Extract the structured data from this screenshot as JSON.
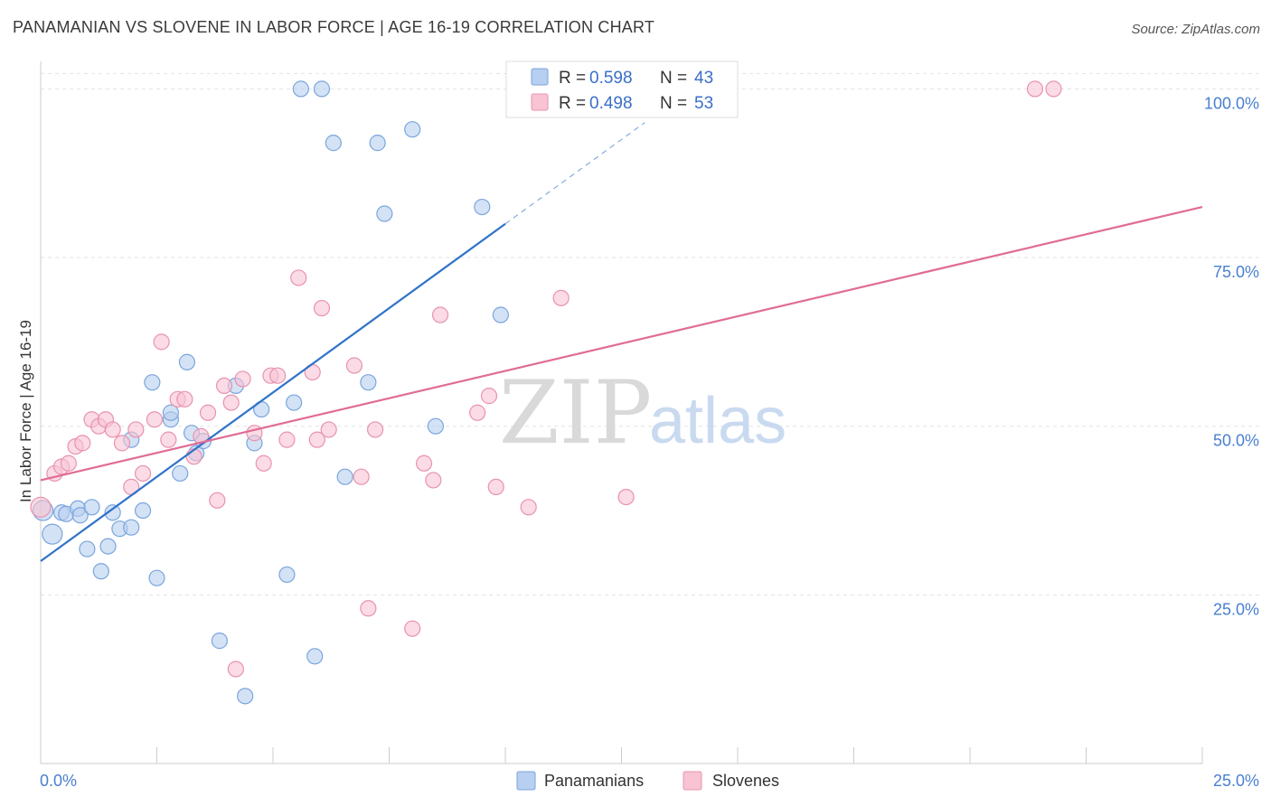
{
  "title": "PANAMANIAN VS SLOVENE IN LABOR FORCE | AGE 16-19 CORRELATION CHART",
  "source": "Source: ZipAtlas.com",
  "watermark": {
    "zip": "ZIP",
    "atlas": "atlas"
  },
  "colors": {
    "blue_fill": "#b7cff0",
    "blue_stroke": "#7aa6dc",
    "blue_line": "#2f73c9",
    "pink_fill": "#f8c3d3",
    "pink_stroke": "#e893ae",
    "pink_line": "#e06c95",
    "grid": "#e3e3e3",
    "axis": "#cccccc"
  },
  "legend": {
    "r_label": "R =",
    "n_label": "N =",
    "entries": [
      {
        "r": "0.598",
        "n": "43"
      },
      {
        "r": "0.498",
        "n": "53"
      }
    ]
  },
  "chart_data": {
    "type": "scatter",
    "title": "PANAMANIAN VS SLOVENE IN LABOR FORCE | AGE 16-19 CORRELATION CHART",
    "xlabel": "",
    "ylabel": "In Labor Force | Age 16-19",
    "xlim": [
      0,
      25
    ],
    "ylim": [
      0,
      103
    ],
    "x_tick_labels": [
      "0.0%",
      "25.0%"
    ],
    "y_ticks": [
      25,
      50,
      75,
      100
    ],
    "y_tick_labels": [
      "25.0%",
      "50.0%",
      "75.0%",
      "100.0%"
    ],
    "grid": true,
    "legend_position": "top-center",
    "series": [
      {
        "name": "Panamanians",
        "r": 0.598,
        "n": 43,
        "trend": {
          "x0": 0,
          "y0": 30.0,
          "x1": 10,
          "y1": 80.0,
          "dashed_to_x": 13.0
        },
        "points": [
          [
            0.05,
            37.5
          ],
          [
            0.25,
            34.0
          ],
          [
            0.45,
            37.2
          ],
          [
            0.55,
            37.0
          ],
          [
            0.8,
            37.8
          ],
          [
            0.85,
            36.8
          ],
          [
            1.0,
            31.8
          ],
          [
            1.1,
            38.0
          ],
          [
            1.3,
            28.5
          ],
          [
            1.45,
            32.2
          ],
          [
            1.55,
            37.2
          ],
          [
            1.7,
            34.8
          ],
          [
            1.95,
            35.0
          ],
          [
            2.2,
            37.5
          ],
          [
            1.95,
            48.0
          ],
          [
            2.4,
            56.5
          ],
          [
            2.5,
            27.5
          ],
          [
            2.8,
            51.0
          ],
          [
            2.8,
            52.0
          ],
          [
            3.0,
            43.0
          ],
          [
            3.15,
            59.5
          ],
          [
            3.25,
            49.0
          ],
          [
            3.35,
            46.0
          ],
          [
            3.5,
            47.8
          ],
          [
            3.85,
            18.2
          ],
          [
            4.2,
            56.0
          ],
          [
            4.4,
            10.0
          ],
          [
            4.6,
            47.5
          ],
          [
            4.75,
            52.5
          ],
          [
            5.3,
            28.0
          ],
          [
            5.45,
            53.5
          ],
          [
            5.6,
            100.0
          ],
          [
            5.9,
            15.9
          ],
          [
            6.05,
            100.0
          ],
          [
            6.3,
            92.0
          ],
          [
            6.55,
            42.5
          ],
          [
            7.05,
            56.5
          ],
          [
            7.25,
            92.0
          ],
          [
            7.4,
            81.5
          ],
          [
            8.0,
            94.0
          ],
          [
            8.5,
            50.0
          ],
          [
            9.5,
            82.5
          ],
          [
            9.9,
            66.5
          ]
        ]
      },
      {
        "name": "Slovenes",
        "r": 0.498,
        "n": 53,
        "trend": {
          "x0": 0,
          "y0": 42.0,
          "x1": 25,
          "y1": 82.5
        },
        "points": [
          [
            0.0,
            38.0
          ],
          [
            0.3,
            43.0
          ],
          [
            0.45,
            44.0
          ],
          [
            0.6,
            44.5
          ],
          [
            0.75,
            47.0
          ],
          [
            0.9,
            47.5
          ],
          [
            1.1,
            51.0
          ],
          [
            1.25,
            50.0
          ],
          [
            1.4,
            51.0
          ],
          [
            1.55,
            49.5
          ],
          [
            1.75,
            47.5
          ],
          [
            1.95,
            41.0
          ],
          [
            2.05,
            49.5
          ],
          [
            2.2,
            43.0
          ],
          [
            2.45,
            51.0
          ],
          [
            2.6,
            62.5
          ],
          [
            2.75,
            48.0
          ],
          [
            2.95,
            54.0
          ],
          [
            3.1,
            54.0
          ],
          [
            3.3,
            45.5
          ],
          [
            3.45,
            48.5
          ],
          [
            3.6,
            52.0
          ],
          [
            3.8,
            39.0
          ],
          [
            3.95,
            56.0
          ],
          [
            4.1,
            53.5
          ],
          [
            4.2,
            14.0
          ],
          [
            4.35,
            57.0
          ],
          [
            4.6,
            49.0
          ],
          [
            4.8,
            44.5
          ],
          [
            4.95,
            57.5
          ],
          [
            5.1,
            57.5
          ],
          [
            5.3,
            48.0
          ],
          [
            5.55,
            72.0
          ],
          [
            5.85,
            58.0
          ],
          [
            5.95,
            48.0
          ],
          [
            6.05,
            67.5
          ],
          [
            6.2,
            49.5
          ],
          [
            6.75,
            59.0
          ],
          [
            6.9,
            42.5
          ],
          [
            7.05,
            23.0
          ],
          [
            7.2,
            49.5
          ],
          [
            8.0,
            20.0
          ],
          [
            8.25,
            44.5
          ],
          [
            8.45,
            42.0
          ],
          [
            8.6,
            66.5
          ],
          [
            9.4,
            52.0
          ],
          [
            9.65,
            54.5
          ],
          [
            9.8,
            41.0
          ],
          [
            10.5,
            38.0
          ],
          [
            11.2,
            69.0
          ],
          [
            12.6,
            39.5
          ],
          [
            21.4,
            100.0
          ],
          [
            21.8,
            100.0
          ]
        ]
      }
    ]
  }
}
